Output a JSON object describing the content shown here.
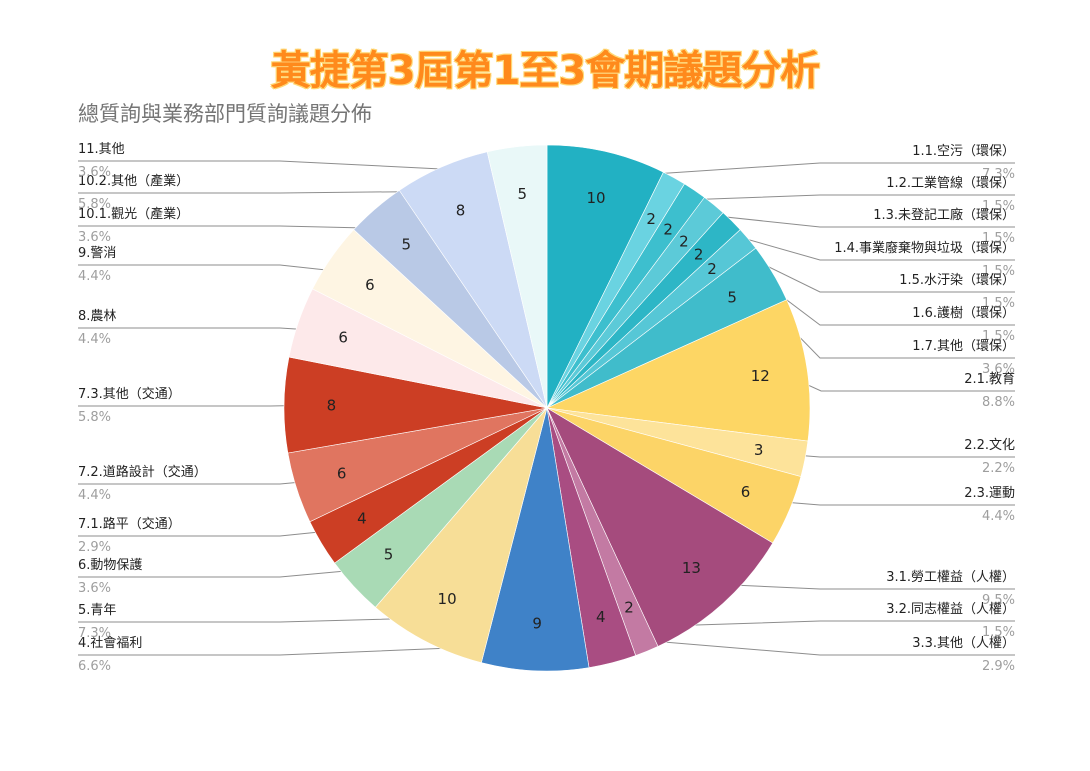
{
  "banner": "黃捷第3屆第1至3會期議題分析",
  "chart_data": {
    "type": "pie",
    "title": "總質詢與業務部門質詢議題分佈",
    "slices": [
      {
        "label": "1.1.空污（環保）",
        "value": 10,
        "percent": "7.3%",
        "color": "#22b1c3"
      },
      {
        "label": "1.2.工業管線（環保）",
        "value": 2,
        "percent": "1.5%",
        "color": "#6ad3e1"
      },
      {
        "label": "1.3.未登記工廠（環保）",
        "value": 2,
        "percent": "1.5%",
        "color": "#3dbfce"
      },
      {
        "label": "1.4.事業廢棄物與垃圾（環保）",
        "value": 2,
        "percent": "1.5%",
        "color": "#5ccad8"
      },
      {
        "label": "1.5.水汙染（環保）",
        "value": 2,
        "percent": "1.5%",
        "color": "#2db6c6"
      },
      {
        "label": "1.6.護樹（環保）",
        "value": 2,
        "percent": "1.5%",
        "color": "#56c7d6"
      },
      {
        "label": "1.7.其他（環保）",
        "value": 5,
        "percent": "3.6%",
        "color": "#40bccb"
      },
      {
        "label": "2.1.教育",
        "value": 12,
        "percent": "8.8%",
        "color": "#fdd664"
      },
      {
        "label": "2.2.文化",
        "value": 3,
        "percent": "2.2%",
        "color": "#fde39a"
      },
      {
        "label": "2.3.運動",
        "value": 6,
        "percent": "4.4%",
        "color": "#fcd467"
      },
      {
        "label": "3.1.勞工權益（人權）",
        "value": 13,
        "percent": "9.5%",
        "color": "#a54b7d"
      },
      {
        "label": "3.2.同志權益（人權）",
        "value": 2,
        "percent": "1.5%",
        "color": "#c37aa3"
      },
      {
        "label": "3.3.其他（人權）",
        "value": 4,
        "percent": "2.9%",
        "color": "#a94d82"
      },
      {
        "label": "4.社會福利",
        "value": 9,
        "percent": "6.6%",
        "color": "#3f82c8"
      },
      {
        "label": "5.青年",
        "value": 10,
        "percent": "7.3%",
        "color": "#f7de97"
      },
      {
        "label": "6.動物保護",
        "value": 5,
        "percent": "3.6%",
        "color": "#a9dab5"
      },
      {
        "label": "7.1.路平（交通）",
        "value": 4,
        "percent": "2.9%",
        "color": "#cc3e24"
      },
      {
        "label": "7.2.道路設計（交通）",
        "value": 6,
        "percent": "4.4%",
        "color": "#e07560"
      },
      {
        "label": "7.3.其他（交通）",
        "value": 8,
        "percent": "5.8%",
        "color": "#cc3e24"
      },
      {
        "label": "8.農林",
        "value": 6,
        "percent": "4.4%",
        "color": "#fde9ea"
      },
      {
        "label": "9.警消",
        "value": 6,
        "percent": "4.4%",
        "color": "#fef5e3"
      },
      {
        "label": "10.1.觀光（產業）",
        "value": 5,
        "percent": "3.6%",
        "color": "#b9c9e6"
      },
      {
        "label": "10.2.其他（產業）",
        "value": 8,
        "percent": "5.8%",
        "color": "#ccdaf5"
      },
      {
        "label": "11.其他",
        "value": 5,
        "percent": "3.6%",
        "color": "#e9f8f8"
      }
    ],
    "legend": "callout labels around pie"
  }
}
